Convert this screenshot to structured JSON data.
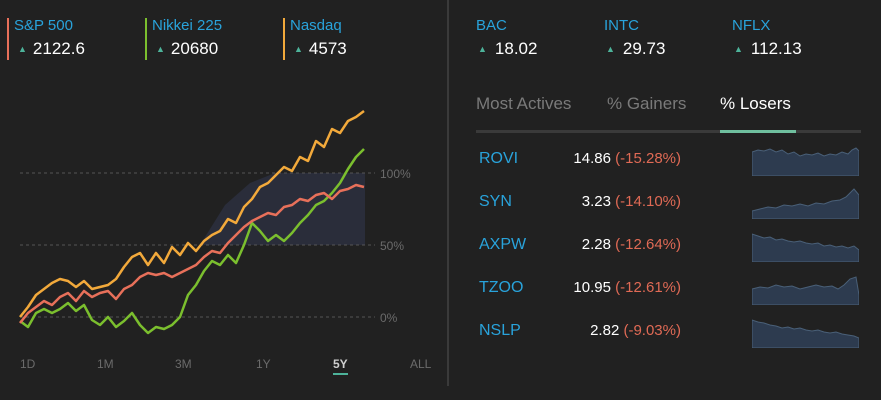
{
  "indices": [
    {
      "name": "S&P 500",
      "value": "2122.6",
      "color": "#e8705a"
    },
    {
      "name": "Nikkei 225",
      "value": "20680",
      "color": "#7bbf2e"
    },
    {
      "name": "Nasdaq",
      "value": "4573",
      "color": "#f2a93b"
    }
  ],
  "chart": {
    "gridlabels": [
      "100%",
      "50%",
      "0%"
    ],
    "ranges": [
      "1D",
      "1M",
      "3M",
      "1Y",
      "5Y",
      "ALL"
    ],
    "active_range": "5Y",
    "fill_color": "#2b2e3d"
  },
  "tickers": [
    {
      "name": "BAC",
      "value": "18.02"
    },
    {
      "name": "INTC",
      "value": "29.73"
    },
    {
      "name": "NFLX",
      "value": "112.13"
    }
  ],
  "tabs": [
    "Most Actives",
    "% Gainers",
    "% Losers"
  ],
  "active_tab": "% Losers",
  "losers": [
    {
      "symbol": "ROVI",
      "price": "14.86",
      "change": "(-15.28%)"
    },
    {
      "symbol": "SYN",
      "price": "3.23",
      "change": "(-14.10%)"
    },
    {
      "symbol": "AXPW",
      "price": "2.28",
      "change": "(-12.64%)"
    },
    {
      "symbol": "TZOO",
      "price": "10.95",
      "change": "(-12.61%)"
    },
    {
      "symbol": "NSLP",
      "price": "2.82",
      "change": "(-9.03%)"
    }
  ],
  "colors": {
    "up": "#4db39a",
    "down": "#e06a55",
    "link": "#29a3db",
    "spark": "#2d3b4f",
    "spark_line": "#4a6078"
  },
  "icons": {
    "up_arrow": "up-triangle-icon"
  }
}
